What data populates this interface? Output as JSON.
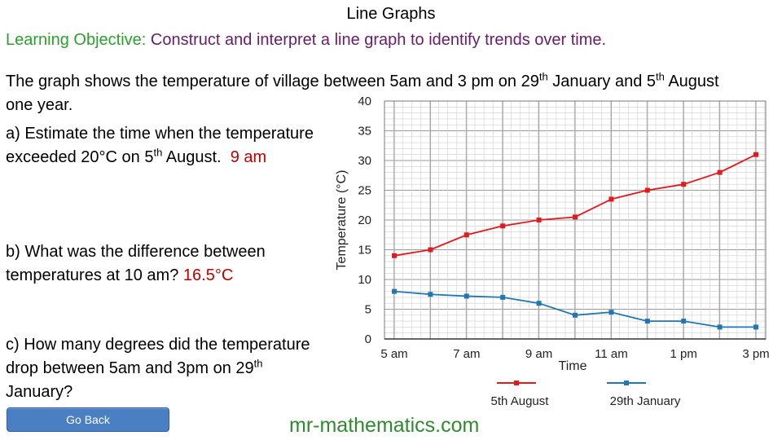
{
  "title": "Line Graphs",
  "objective": {
    "label": "Learning Objective:",
    "text": "Construct and interpret a line graph to identify trends over time."
  },
  "intro": {
    "part1": "The graph shows the temperature of village between 5am and 3 pm on 29",
    "sup1": "th",
    "part2": " January and 5",
    "sup2": "th",
    "part3": " August one year."
  },
  "questions": {
    "a": {
      "part1": "a) Estimate the time when the temperature exceeded 20°C on 5",
      "sup": "th",
      "part2": " August.",
      "answer": "9 am"
    },
    "b": {
      "text": "b) What was the difference between temperatures at 10 am?",
      "answer": "16.5°C"
    },
    "c": {
      "part1": "c) How many degrees did the temperature drop between 5am and 3pm on 29",
      "sup": "th",
      "part2": " January?"
    }
  },
  "go_back_label": "Go Back",
  "footer": "mr-mathematics.com",
  "colors": {
    "august": "#e31a1c",
    "january": "#1f78b4"
  },
  "chart_data": {
    "type": "line",
    "xlabel": "Time",
    "ylabel": "Temperature (°C)",
    "x": [
      "5 am",
      "6 am",
      "7 am",
      "8 am",
      "9 am",
      "10 am",
      "11 am",
      "12 pm",
      "1 pm",
      "2 pm",
      "3 pm"
    ],
    "x_tick_labels": [
      "5 am",
      "",
      "7 am",
      "",
      "9 am",
      "",
      "11 am",
      "",
      "1 pm",
      "",
      "3 pm"
    ],
    "y_ticks": [
      "0",
      "5",
      "10",
      "15",
      "20",
      "25",
      "30",
      "35",
      "40"
    ],
    "ylim": [
      0,
      40
    ],
    "grid": true,
    "legend": "bottom",
    "series": [
      {
        "name": "5th August",
        "values": [
          14,
          15,
          17.5,
          19,
          20,
          20.5,
          23.5,
          25,
          26,
          28,
          31
        ]
      },
      {
        "name": "29th January",
        "values": [
          8,
          7.5,
          7.2,
          7,
          6,
          4,
          4.5,
          3,
          3,
          2,
          2
        ]
      }
    ]
  }
}
